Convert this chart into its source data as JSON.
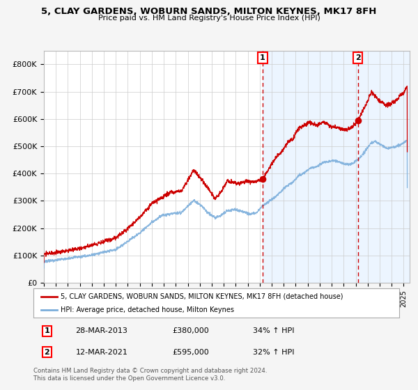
{
  "title_line1": "5, CLAY GARDENS, WOBURN SANDS, MILTON KEYNES, MK17 8FH",
  "title_line2": "Price paid vs. HM Land Registry's House Price Index (HPI)",
  "bg_color": "#f5f5f5",
  "plot_bg_color": "#ffffff",
  "grid_color": "#cccccc",
  "red_line_color": "#cc0000",
  "blue_line_color": "#7aaddb",
  "shade_color": "#ddeeff",
  "purchase1_x": 2013.24,
  "purchase1_y": 380000,
  "purchase2_x": 2021.19,
  "purchase2_y": 595000,
  "xlim_start": 1995.0,
  "xlim_end": 2025.5,
  "ylim_min": 0,
  "ylim_max": 850000,
  "yticks": [
    0,
    100000,
    200000,
    300000,
    400000,
    500000,
    600000,
    700000,
    800000
  ],
  "ytick_labels": [
    "£0",
    "£100K",
    "£200K",
    "£300K",
    "£400K",
    "£500K",
    "£600K",
    "£700K",
    "£800K"
  ],
  "legend_red_label": "5, CLAY GARDENS, WOBURN SANDS, MILTON KEYNES, MK17 8FH (detached house)",
  "legend_blue_label": "HPI: Average price, detached house, Milton Keynes",
  "table_row1": [
    "1",
    "28-MAR-2013",
    "£380,000",
    "34% ↑ HPI"
  ],
  "table_row2": [
    "2",
    "12-MAR-2021",
    "£595,000",
    "32% ↑ HPI"
  ],
  "footnote1": "Contains HM Land Registry data © Crown copyright and database right 2024.",
  "footnote2": "This data is licensed under the Open Government Licence v3.0.",
  "red_anchors": [
    [
      1995.0,
      105000
    ],
    [
      1996.0,
      110000
    ],
    [
      1997.0,
      118000
    ],
    [
      1998.0,
      125000
    ],
    [
      1999.0,
      138000
    ],
    [
      2000.0,
      150000
    ],
    [
      2001.0,
      165000
    ],
    [
      2002.0,
      200000
    ],
    [
      2003.0,
      240000
    ],
    [
      2004.0,
      290000
    ],
    [
      2004.8,
      310000
    ],
    [
      2005.5,
      330000
    ],
    [
      2006.5,
      338000
    ],
    [
      2007.5,
      412000
    ],
    [
      2008.2,
      375000
    ],
    [
      2008.8,
      340000
    ],
    [
      2009.3,
      308000
    ],
    [
      2009.8,
      335000
    ],
    [
      2010.3,
      375000
    ],
    [
      2010.8,
      368000
    ],
    [
      2011.3,
      362000
    ],
    [
      2011.8,
      372000
    ],
    [
      2012.3,
      370000
    ],
    [
      2012.8,
      373000
    ],
    [
      2013.24,
      380000
    ],
    [
      2013.8,
      420000
    ],
    [
      2014.3,
      455000
    ],
    [
      2014.8,
      480000
    ],
    [
      2015.3,
      510000
    ],
    [
      2015.8,
      530000
    ],
    [
      2016.2,
      565000
    ],
    [
      2016.8,
      580000
    ],
    [
      2017.2,
      590000
    ],
    [
      2017.8,
      575000
    ],
    [
      2018.3,
      590000
    ],
    [
      2018.8,
      575000
    ],
    [
      2019.2,
      570000
    ],
    [
      2019.8,
      565000
    ],
    [
      2020.3,
      560000
    ],
    [
      2020.8,
      575000
    ],
    [
      2021.19,
      595000
    ],
    [
      2021.6,
      630000
    ],
    [
      2022.0,
      665000
    ],
    [
      2022.3,
      700000
    ],
    [
      2022.6,
      685000
    ],
    [
      2022.9,
      670000
    ],
    [
      2023.2,
      660000
    ],
    [
      2023.5,
      650000
    ],
    [
      2023.8,
      655000
    ],
    [
      2024.1,
      660000
    ],
    [
      2024.4,
      670000
    ],
    [
      2024.7,
      685000
    ],
    [
      2025.0,
      695000
    ],
    [
      2025.3,
      720000
    ]
  ],
  "blue_anchors": [
    [
      1995.0,
      78000
    ],
    [
      1996.0,
      83000
    ],
    [
      1997.0,
      89000
    ],
    [
      1998.0,
      95000
    ],
    [
      1999.0,
      102000
    ],
    [
      2000.0,
      112000
    ],
    [
      2001.0,
      122000
    ],
    [
      2002.0,
      152000
    ],
    [
      2003.0,
      182000
    ],
    [
      2004.0,
      222000
    ],
    [
      2004.8,
      245000
    ],
    [
      2005.5,
      252000
    ],
    [
      2006.5,
      258000
    ],
    [
      2007.5,
      303000
    ],
    [
      2008.2,
      278000
    ],
    [
      2008.8,
      252000
    ],
    [
      2009.3,
      238000
    ],
    [
      2009.8,
      248000
    ],
    [
      2010.3,
      263000
    ],
    [
      2010.8,
      268000
    ],
    [
      2011.3,
      265000
    ],
    [
      2011.8,
      258000
    ],
    [
      2012.3,
      250000
    ],
    [
      2012.8,
      258000
    ],
    [
      2013.24,
      283000
    ],
    [
      2013.8,
      298000
    ],
    [
      2014.3,
      315000
    ],
    [
      2014.8,
      335000
    ],
    [
      2015.3,
      355000
    ],
    [
      2015.8,
      370000
    ],
    [
      2016.2,
      390000
    ],
    [
      2016.8,
      405000
    ],
    [
      2017.2,
      418000
    ],
    [
      2017.8,
      428000
    ],
    [
      2018.3,
      440000
    ],
    [
      2018.8,
      445000
    ],
    [
      2019.2,
      448000
    ],
    [
      2019.8,
      440000
    ],
    [
      2020.3,
      432000
    ],
    [
      2020.8,
      438000
    ],
    [
      2021.19,
      452000
    ],
    [
      2021.6,
      472000
    ],
    [
      2022.0,
      495000
    ],
    [
      2022.3,
      512000
    ],
    [
      2022.6,
      518000
    ],
    [
      2022.9,
      512000
    ],
    [
      2023.2,
      502000
    ],
    [
      2023.5,
      495000
    ],
    [
      2023.8,
      492000
    ],
    [
      2024.1,
      495000
    ],
    [
      2024.4,
      500000
    ],
    [
      2024.7,
      505000
    ],
    [
      2025.0,
      512000
    ],
    [
      2025.3,
      525000
    ]
  ]
}
